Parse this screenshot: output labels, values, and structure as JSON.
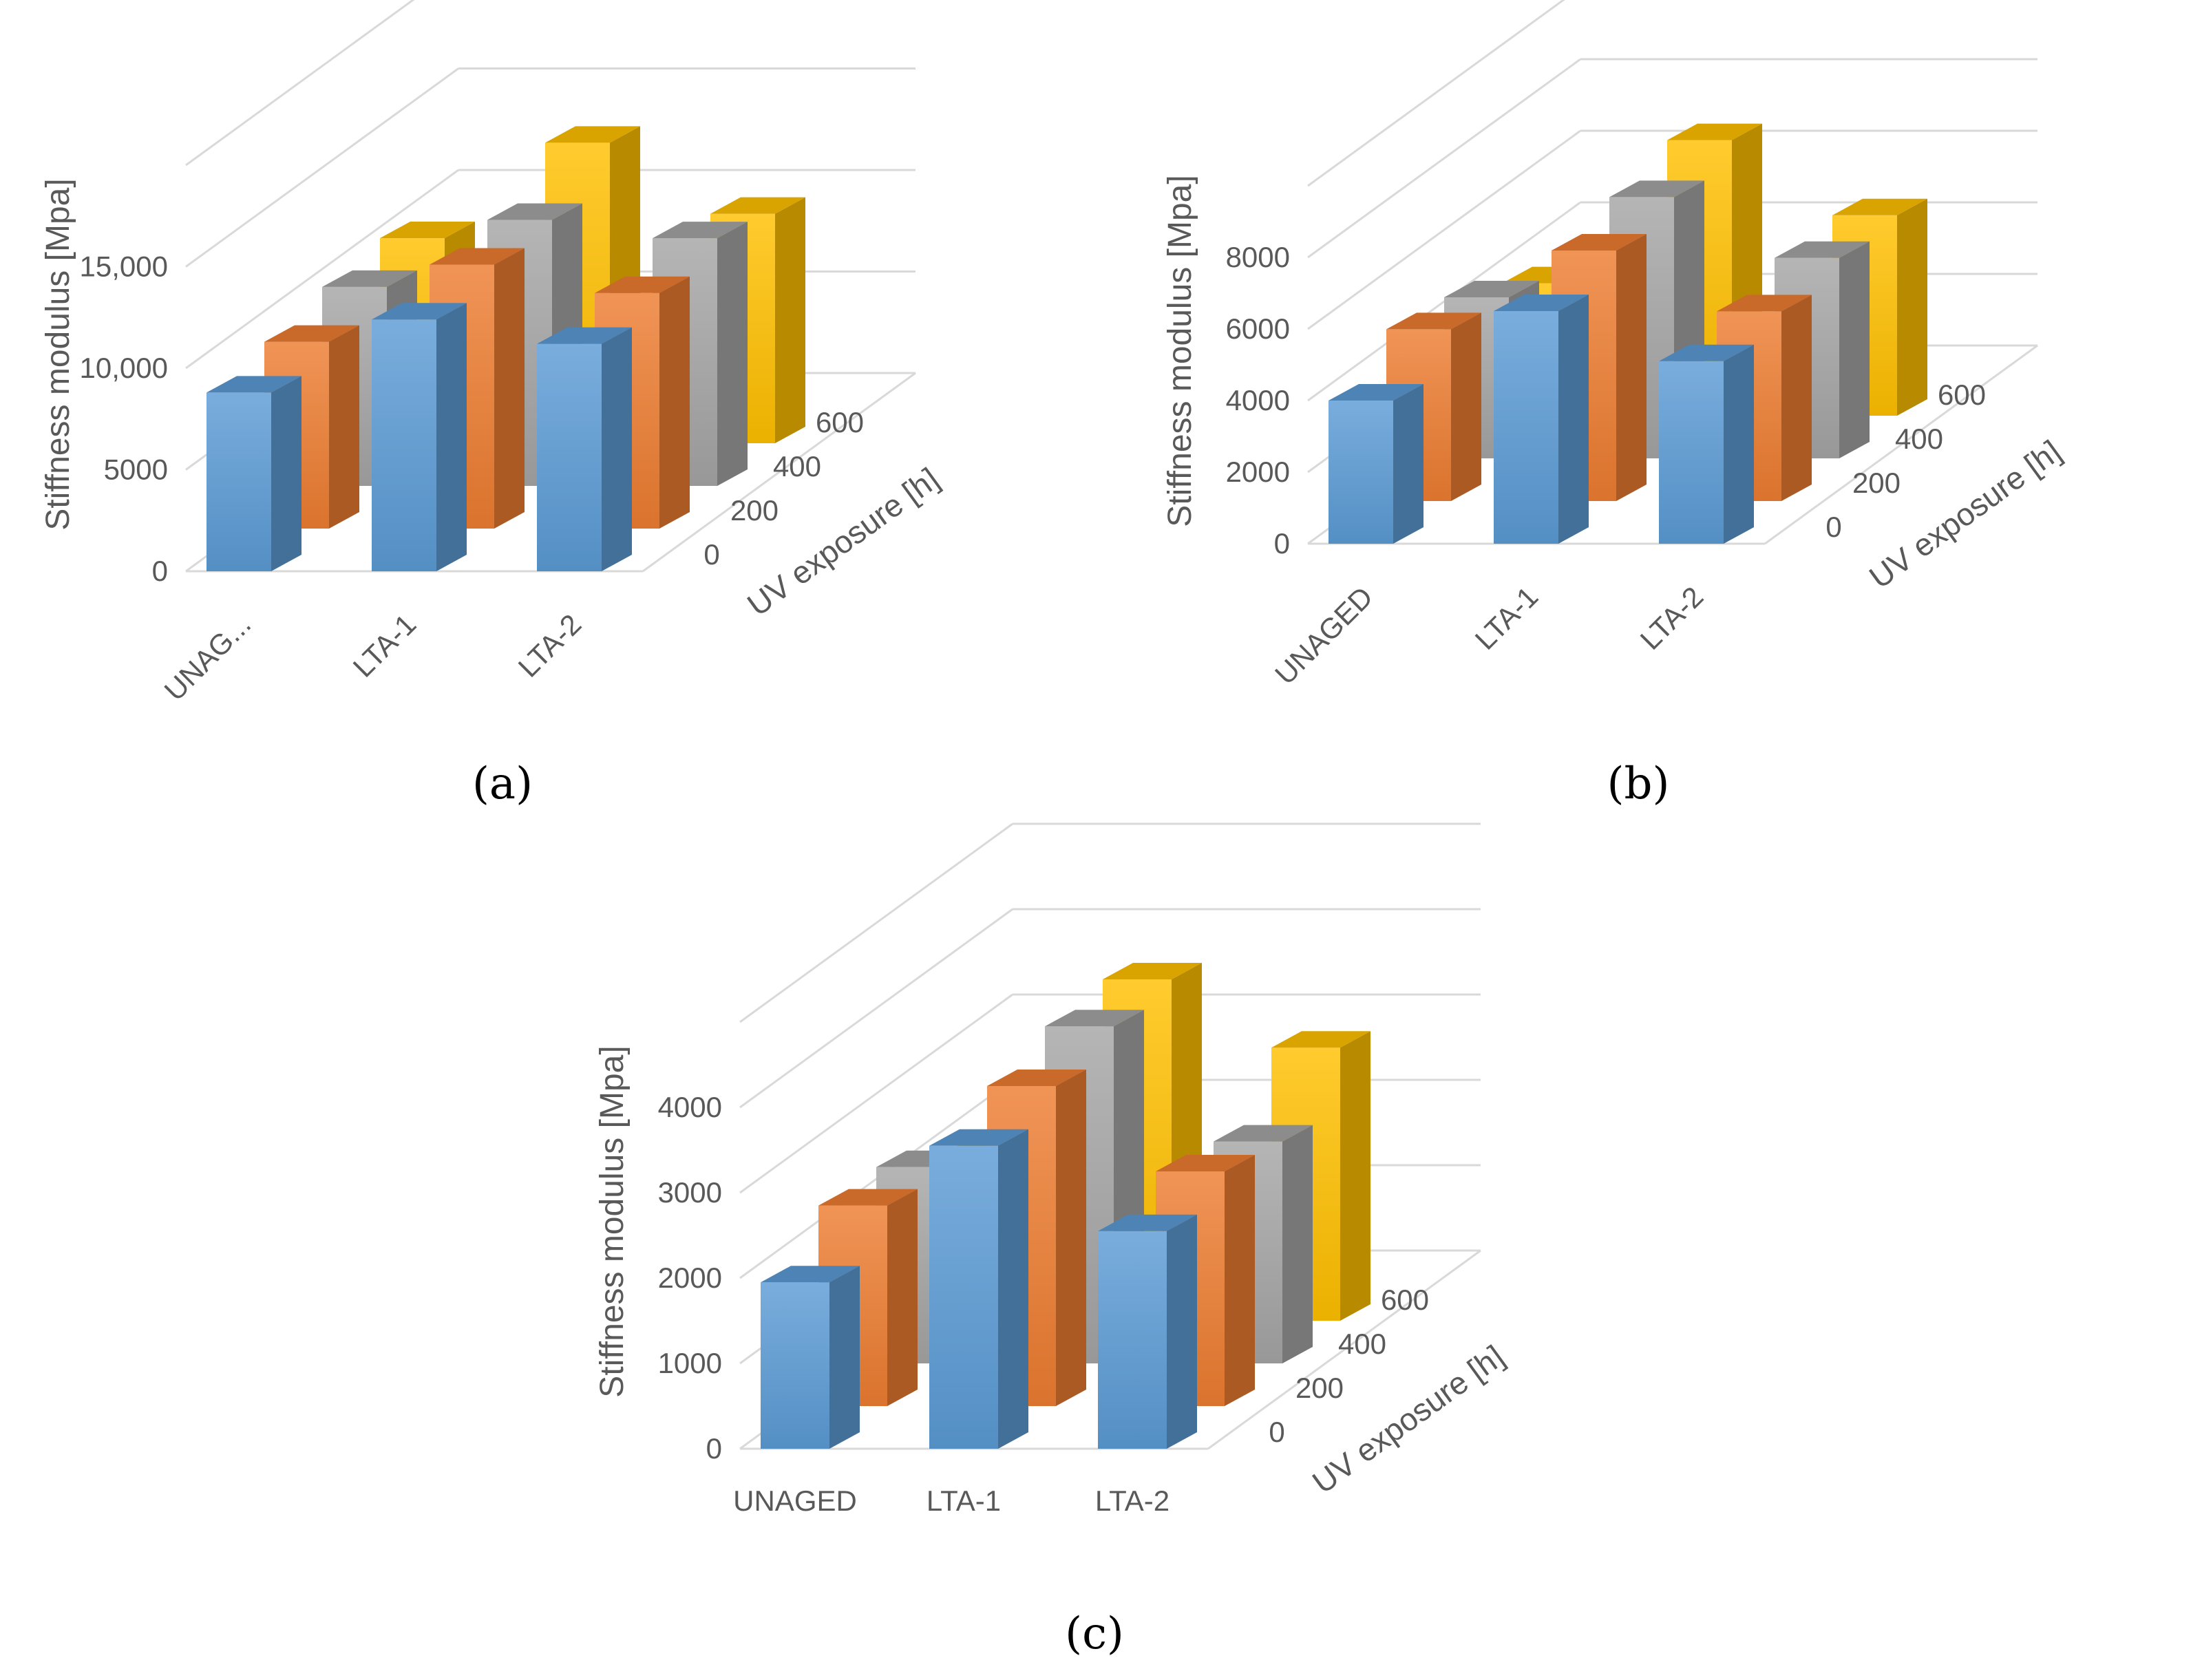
{
  "colors": {
    "s0": "#5b9bd5",
    "s200": "#ed7d31",
    "s400": "#a5a5a5",
    "s600": "#ffc000",
    "grid": "#d9d9d9",
    "text": "#595959"
  },
  "chart_data": [
    {
      "type": "bar",
      "panel_label": "(a)",
      "ylabel": "Stiffness modulus [Mpa]",
      "depth_axis_label": "UV exposure [h]",
      "categories": [
        "UNAG...",
        "LTA-1",
        "LTA-2"
      ],
      "series_names": [
        "0",
        "200",
        "400",
        "600"
      ],
      "y_ticks": [
        "0",
        "5000",
        "10,000",
        "15,000"
      ],
      "ylim": [
        0,
        20000
      ],
      "series": [
        {
          "name": "0",
          "values": [
            8800,
            12400,
            11200
          ]
        },
        {
          "name": "200",
          "values": [
            9200,
            13000,
            11600
          ]
        },
        {
          "name": "400",
          "values": [
            9800,
            13100,
            12200
          ]
        },
        {
          "name": "600",
          "values": [
            10100,
            14800,
            11300
          ]
        }
      ]
    },
    {
      "type": "bar",
      "panel_label": "(b)",
      "ylabel": "Stiffness modulus [Mpa]",
      "depth_axis_label": "UV exposure [h]",
      "categories": [
        "UNAGED",
        "LTA-1",
        "LTA-2"
      ],
      "series_names": [
        "0",
        "200",
        "400",
        "600"
      ],
      "y_ticks": [
        "0",
        "2000",
        "4000",
        "6000",
        "8000"
      ],
      "ylim": [
        0,
        10000
      ],
      "series": [
        {
          "name": "0",
          "values": [
            4000,
            6500,
            5100
          ]
        },
        {
          "name": "200",
          "values": [
            4800,
            7000,
            5300
          ]
        },
        {
          "name": "400",
          "values": [
            4500,
            7300,
            5600
          ]
        },
        {
          "name": "600",
          "values": [
            3700,
            7700,
            5600
          ]
        }
      ]
    },
    {
      "type": "bar",
      "panel_label": "(c)",
      "ylabel": "Stiffness modulus [Mpa]",
      "depth_axis_label": "UV exposure [h]",
      "categories": [
        "UNAGED",
        "LTA-1",
        "LTA-2"
      ],
      "series_names": [
        "0",
        "200",
        "400",
        "600"
      ],
      "y_ticks": [
        "0",
        "1000",
        "2000",
        "3000",
        "4000"
      ],
      "ylim": [
        0,
        5000
      ],
      "series": [
        {
          "name": "0",
          "values": [
            1950,
            3550,
            2550
          ]
        },
        {
          "name": "200",
          "values": [
            2350,
            3750,
            2750
          ]
        },
        {
          "name": "400",
          "values": [
            2300,
            3950,
            2600
          ]
        },
        {
          "name": "600",
          "values": [
            1900,
            4000,
            3200
          ]
        }
      ]
    }
  ]
}
